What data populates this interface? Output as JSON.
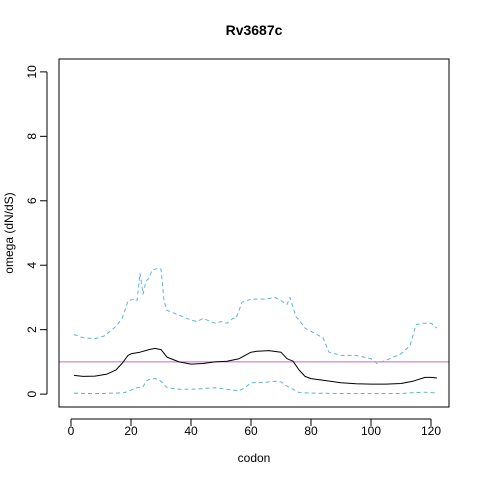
{
  "chart_data": {
    "type": "line",
    "title": "Rv3687c",
    "xlabel": "codon",
    "ylabel": "omega (dN/dS)",
    "xlim": [
      -4,
      126
    ],
    "ylim": [
      -0.4,
      10.4
    ],
    "xticks": [
      0,
      20,
      40,
      60,
      80,
      100,
      120
    ],
    "yticks": [
      0,
      2,
      4,
      6,
      8,
      10
    ],
    "reference_line": {
      "y": 1,
      "color": "#cc66cc"
    },
    "grid": false,
    "series": [
      {
        "style": "solid",
        "color": "#000000",
        "x": [
          1,
          4,
          8,
          12,
          15,
          17,
          19,
          20,
          23,
          26,
          28,
          30,
          32,
          36,
          40,
          44,
          48,
          52,
          56,
          60,
          62,
          66,
          70,
          72,
          74,
          76,
          78,
          80,
          85,
          90,
          95,
          100,
          105,
          110,
          114,
          118,
          120,
          122
        ],
        "y": [
          0.58,
          0.55,
          0.56,
          0.62,
          0.75,
          0.95,
          1.2,
          1.25,
          1.3,
          1.38,
          1.42,
          1.38,
          1.15,
          1.0,
          0.93,
          0.95,
          1.0,
          1.02,
          1.1,
          1.3,
          1.33,
          1.35,
          1.3,
          1.1,
          1.02,
          0.75,
          0.55,
          0.48,
          0.42,
          0.35,
          0.32,
          0.31,
          0.31,
          0.33,
          0.4,
          0.52,
          0.52,
          0.5
        ]
      },
      {
        "style": "dashed",
        "color": "#5fb2e4",
        "x": [
          1,
          4,
          8,
          11,
          13,
          15,
          17,
          18,
          19,
          21,
          22,
          23,
          24,
          25,
          26,
          27,
          29,
          30,
          31,
          32,
          36,
          40,
          42,
          44,
          48,
          50,
          52,
          54,
          55,
          57,
          60,
          65,
          68,
          70,
          72,
          73,
          74,
          75,
          76,
          78,
          80,
          84,
          86,
          88,
          90,
          95,
          100,
          102,
          105,
          110,
          113,
          115,
          117,
          120,
          122
        ],
        "y": [
          1.85,
          1.75,
          1.72,
          1.8,
          1.95,
          2.1,
          2.35,
          2.6,
          2.9,
          2.95,
          2.9,
          3.75,
          3.1,
          3.5,
          3.6,
          3.85,
          3.9,
          3.88,
          2.9,
          2.6,
          2.45,
          2.3,
          2.25,
          2.35,
          2.2,
          2.25,
          2.2,
          2.35,
          2.35,
          2.85,
          2.95,
          2.95,
          3.0,
          2.9,
          2.78,
          3.0,
          2.7,
          2.4,
          2.3,
          2.05,
          1.95,
          1.75,
          1.3,
          1.25,
          1.2,
          1.2,
          1.1,
          0.95,
          1.05,
          1.25,
          1.5,
          2.15,
          2.2,
          2.2,
          2.05
        ]
      },
      {
        "style": "dashed",
        "color": "#5fb2e4",
        "x": [
          1,
          5,
          10,
          15,
          18,
          20,
          22,
          24,
          25,
          26,
          28,
          30,
          32,
          36,
          40,
          44,
          48,
          52,
          56,
          58,
          60,
          65,
          68,
          70,
          72,
          74,
          76,
          80,
          90,
          100,
          110,
          115,
          118,
          120,
          122
        ],
        "y": [
          0.03,
          0.02,
          0.02,
          0.03,
          0.05,
          0.12,
          0.2,
          0.22,
          0.4,
          0.45,
          0.48,
          0.4,
          0.2,
          0.15,
          0.15,
          0.17,
          0.2,
          0.15,
          0.1,
          0.2,
          0.35,
          0.37,
          0.4,
          0.38,
          0.25,
          0.15,
          0.05,
          0.03,
          0.02,
          0.02,
          0.02,
          0.05,
          0.06,
          0.05,
          0.03
        ]
      }
    ]
  }
}
